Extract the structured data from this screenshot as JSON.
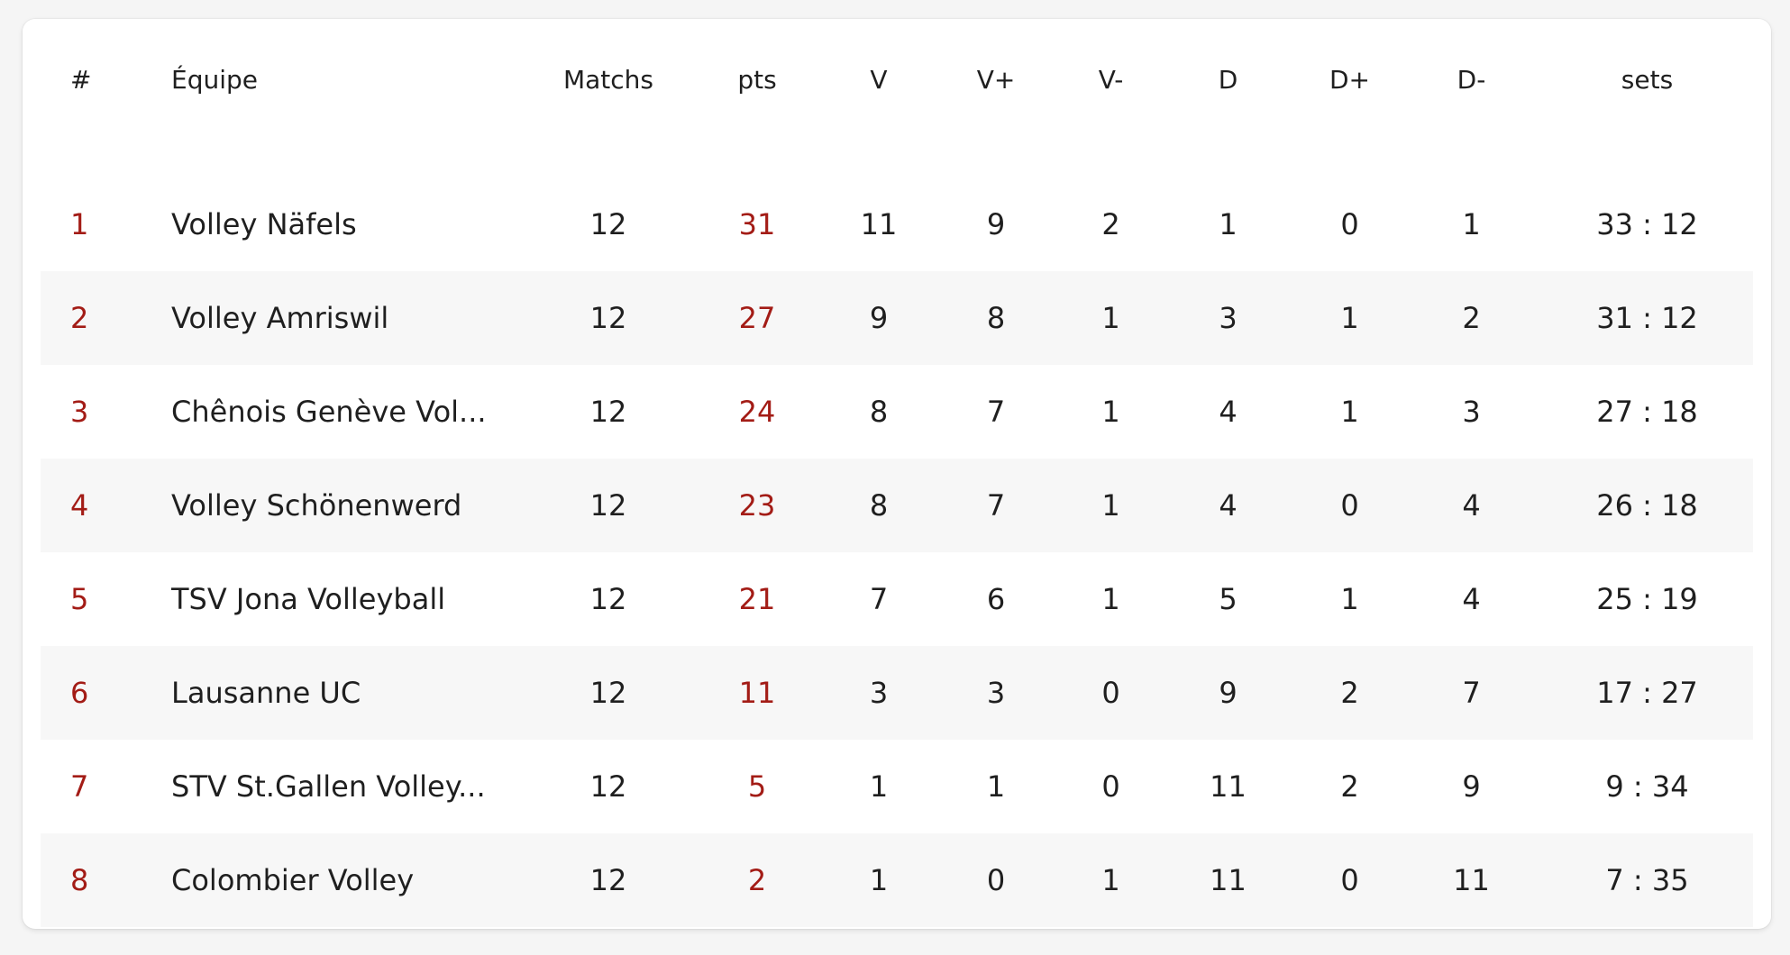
{
  "table": {
    "headers": {
      "rank": "#",
      "team": "Équipe",
      "matches": "Matchs",
      "pts": "pts",
      "v": "V",
      "vplus": "V+",
      "vminus": "V-",
      "d": "D",
      "dplus": "D+",
      "dminus": "D-",
      "sets": "sets"
    },
    "rows": [
      {
        "rank": "1",
        "team": "Volley Näfels",
        "matches": "12",
        "pts": "31",
        "v": "11",
        "vplus": "9",
        "vminus": "2",
        "d": "1",
        "dplus": "0",
        "dminus": "1",
        "sets": "33 : 12"
      },
      {
        "rank": "2",
        "team": "Volley Amriswil",
        "matches": "12",
        "pts": "27",
        "v": "9",
        "vplus": "8",
        "vminus": "1",
        "d": "3",
        "dplus": "1",
        "dminus": "2",
        "sets": "31 : 12"
      },
      {
        "rank": "3",
        "team": "Chênois Genève Vol...",
        "matches": "12",
        "pts": "24",
        "v": "8",
        "vplus": "7",
        "vminus": "1",
        "d": "4",
        "dplus": "1",
        "dminus": "3",
        "sets": "27 : 18"
      },
      {
        "rank": "4",
        "team": "Volley Schönenwerd",
        "matches": "12",
        "pts": "23",
        "v": "8",
        "vplus": "7",
        "vminus": "1",
        "d": "4",
        "dplus": "0",
        "dminus": "4",
        "sets": "26 : 18"
      },
      {
        "rank": "5",
        "team": "TSV Jona Volleyball",
        "matches": "12",
        "pts": "21",
        "v": "7",
        "vplus": "6",
        "vminus": "1",
        "d": "5",
        "dplus": "1",
        "dminus": "4",
        "sets": "25 : 19"
      },
      {
        "rank": "6",
        "team": "Lausanne UC",
        "matches": "12",
        "pts": "11",
        "v": "3",
        "vplus": "3",
        "vminus": "0",
        "d": "9",
        "dplus": "2",
        "dminus": "7",
        "sets": "17 : 27"
      },
      {
        "rank": "7",
        "team": "STV St.Gallen Volley...",
        "matches": "12",
        "pts": "5",
        "v": "1",
        "vplus": "1",
        "vminus": "0",
        "d": "11",
        "dplus": "2",
        "dminus": "9",
        "sets": "9 : 34"
      },
      {
        "rank": "8",
        "team": "Colombier Volley",
        "matches": "12",
        "pts": "2",
        "v": "1",
        "vplus": "0",
        "vminus": "1",
        "d": "11",
        "dplus": "0",
        "dminus": "11",
        "sets": "7 : 35"
      }
    ]
  },
  "colors": {
    "accent": "#a31c16",
    "text": "#1f1f1f",
    "stripe": "#f7f7f7",
    "card": "#ffffff",
    "page": "#f5f5f5"
  }
}
